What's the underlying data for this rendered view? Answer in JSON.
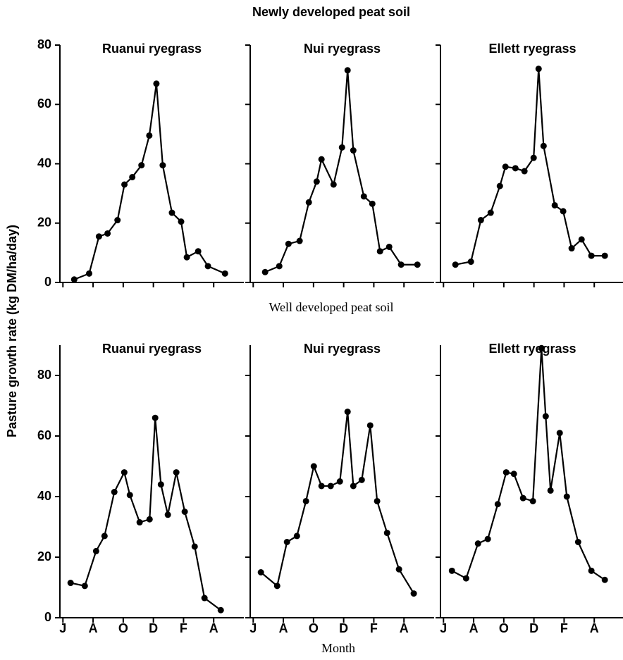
{
  "sections": [
    {
      "title": "Newly developed peat soil"
    },
    {
      "title": "Well developed peat soil"
    }
  ],
  "y_label": "Pasture growth rate (kg DM/ha/day)",
  "x_label": "Month",
  "chart_data": [
    {
      "type": "line",
      "title": "Ruanui ryegrass",
      "color": "#000000",
      "marker": "circle",
      "x": [
        0.75,
        1.74,
        2.39,
        2.96,
        3.62,
        4.08,
        4.6,
        5.21,
        5.73,
        6.2,
        6.62,
        7.23,
        7.84,
        8.22,
        8.97,
        9.62,
        10.75
      ],
      "values": [
        1,
        3,
        15.5,
        16.5,
        21,
        33,
        35.5,
        39.5,
        49.5,
        67,
        39.5,
        23.5,
        20.5,
        8.5,
        10.5,
        5.5,
        3
      ],
      "xlim": [
        -0.2,
        12
      ],
      "xticks": [
        {
          "value": 0,
          "label": "J"
        },
        {
          "value": 2,
          "label": "A"
        },
        {
          "value": 4,
          "label": "O"
        },
        {
          "value": 6,
          "label": "D"
        },
        {
          "value": 8,
          "label": "F"
        },
        {
          "value": 10,
          "label": "A"
        }
      ],
      "ylim": [
        0,
        80
      ],
      "yticks": [
        0,
        20,
        40,
        60,
        80
      ],
      "y_tick_labels": true,
      "x_tick_labels": false
    },
    {
      "type": "line",
      "title": "Nui ryegrass",
      "color": "#000000",
      "marker": "circle",
      "x": [
        0.79,
        1.73,
        2.34,
        3.08,
        3.69,
        4.21,
        4.53,
        5.33,
        5.89,
        6.26,
        6.64,
        7.34,
        7.9,
        8.41,
        9.02,
        9.81,
        10.89
      ],
      "values": [
        3.5,
        5.5,
        13,
        14,
        27,
        34,
        41.5,
        33,
        45.5,
        71.5,
        44.5,
        29,
        26.5,
        10.5,
        12,
        6,
        6
      ],
      "xlim": [
        -0.2,
        12
      ],
      "xticks": [
        {
          "value": 0,
          "label": "J"
        },
        {
          "value": 2,
          "label": "A"
        },
        {
          "value": 4,
          "label": "O"
        },
        {
          "value": 6,
          "label": "D"
        },
        {
          "value": 8,
          "label": "F"
        },
        {
          "value": 10,
          "label": "A"
        }
      ],
      "ylim": [
        0,
        80
      ],
      "yticks": [
        0,
        20,
        40,
        60,
        80
      ],
      "y_tick_labels": false,
      "x_tick_labels": false
    },
    {
      "type": "line",
      "title": "Ellett ryegrass",
      "color": "#000000",
      "marker": "circle",
      "x": [
        0.79,
        1.82,
        2.48,
        3.13,
        3.74,
        4.11,
        4.77,
        5.37,
        5.98,
        6.31,
        6.64,
        7.38,
        7.94,
        8.5,
        9.16,
        9.81,
        10.7
      ],
      "values": [
        6,
        7,
        21,
        23.5,
        32.5,
        39,
        38.5,
        37.5,
        42,
        72,
        46,
        26,
        24,
        11.5,
        14.5,
        9,
        9
      ],
      "xlim": [
        -0.2,
        12
      ],
      "xticks": [
        {
          "value": 0,
          "label": "J"
        },
        {
          "value": 2,
          "label": "A"
        },
        {
          "value": 4,
          "label": "O"
        },
        {
          "value": 6,
          "label": "D"
        },
        {
          "value": 8,
          "label": "F"
        },
        {
          "value": 10,
          "label": "A"
        }
      ],
      "ylim": [
        0,
        80
      ],
      "yticks": [
        0,
        20,
        40,
        60,
        80
      ],
      "y_tick_labels": false,
      "x_tick_labels": false
    },
    {
      "type": "line",
      "title": "Ruanui ryegrass",
      "color": "#000000",
      "marker": "circle",
      "x": [
        0.51,
        1.45,
        2.2,
        2.76,
        3.41,
        4.07,
        4.44,
        5.09,
        5.75,
        6.12,
        6.5,
        6.96,
        7.52,
        8.08,
        8.74,
        9.39,
        10.47
      ],
      "values": [
        11.5,
        10.5,
        22,
        27,
        41.5,
        48,
        40.5,
        31.5,
        32.5,
        66,
        44,
        34,
        48,
        35,
        23.5,
        6.5,
        2.5
      ],
      "xlim": [
        -0.2,
        12
      ],
      "xticks": [
        {
          "value": 0,
          "label": "J"
        },
        {
          "value": 2,
          "label": "A"
        },
        {
          "value": 4,
          "label": "O"
        },
        {
          "value": 6,
          "label": "D"
        },
        {
          "value": 8,
          "label": "F"
        },
        {
          "value": 10,
          "label": "A"
        }
      ],
      "ylim": [
        0,
        90
      ],
      "yticks": [
        0,
        20,
        40,
        60,
        80
      ],
      "y_tick_labels": true,
      "x_tick_labels": true
    },
    {
      "type": "line",
      "title": "Nui ryegrass",
      "color": "#000000",
      "marker": "circle",
      "x": [
        0.51,
        1.59,
        2.24,
        2.9,
        3.5,
        4.02,
        4.53,
        5.14,
        5.75,
        6.26,
        6.64,
        7.2,
        7.76,
        8.22,
        8.88,
        9.67,
        10.65
      ],
      "values": [
        15,
        10.5,
        25,
        27,
        38.5,
        50,
        43.5,
        43.5,
        45,
        68,
        43.5,
        45.5,
        63.5,
        38.5,
        28,
        16,
        8
      ],
      "xlim": [
        -0.2,
        12
      ],
      "xticks": [
        {
          "value": 0,
          "label": "J"
        },
        {
          "value": 2,
          "label": "A"
        },
        {
          "value": 4,
          "label": "O"
        },
        {
          "value": 6,
          "label": "D"
        },
        {
          "value": 8,
          "label": "F"
        },
        {
          "value": 10,
          "label": "A"
        }
      ],
      "ylim": [
        0,
        90
      ],
      "yticks": [
        0,
        20,
        40,
        60,
        80
      ],
      "y_tick_labels": false,
      "x_tick_labels": true
    },
    {
      "type": "line",
      "title": "Ellett ryegrass",
      "color": "#000000",
      "marker": "circle",
      "x": [
        0.56,
        1.5,
        2.29,
        2.94,
        3.6,
        4.16,
        4.67,
        5.28,
        5.93,
        6.5,
        6.78,
        7.1,
        7.71,
        8.18,
        8.93,
        9.81,
        10.7
      ],
      "values": [
        15.5,
        13,
        24.5,
        26,
        37.5,
        48,
        47.5,
        39.5,
        38.5,
        89,
        66.5,
        42,
        61,
        40,
        25,
        15.5,
        12.5
      ],
      "xlim": [
        -0.2,
        12
      ],
      "xticks": [
        {
          "value": 0,
          "label": "J"
        },
        {
          "value": 2,
          "label": "A"
        },
        {
          "value": 4,
          "label": "O"
        },
        {
          "value": 6,
          "label": "D"
        },
        {
          "value": 8,
          "label": "F"
        },
        {
          "value": 10,
          "label": "A"
        }
      ],
      "ylim": [
        0,
        90
      ],
      "yticks": [
        0,
        20,
        40,
        60,
        80
      ],
      "y_tick_labels": false,
      "x_tick_labels": true
    }
  ]
}
